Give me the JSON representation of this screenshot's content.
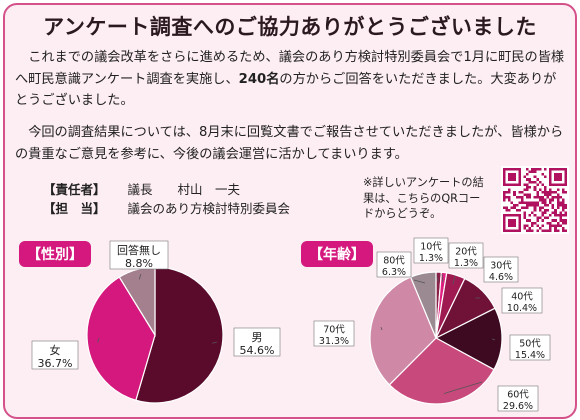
{
  "title": "アンケート調査へのご協力ありがとうございました",
  "paragraph1": {
    "before": "これまでの議会改革をさらに進めるため、議会のあり方検討特別委員会で1月に町民の皆様へ町民意識アンケート調査を実施し、",
    "highlight": "240名",
    "after": "の方からご回答をいただきました。大変ありがとうございました。"
  },
  "paragraph2": "今回の調査結果については、8月末に回覧文書でご報告させていただきましたが、皆様からの貴重なご意見を参考に、今後の議会運営に活かしてまいります。",
  "responsible": {
    "label1": "【責任者】",
    "value1": "議長　　村山　一夫",
    "label2": "【担　当】",
    "value2": "議会のあり方検討特別委員会"
  },
  "qr_note": "※詳しいアンケートの結果は、こちらのQRコードからどうぞ。",
  "colors": {
    "accent": "#d4187d",
    "border": "#d4518a",
    "background": "#fdeef4"
  },
  "chart_data": [
    {
      "type": "pie",
      "title": "【性別】",
      "slices": [
        {
          "label": "男",
          "value": 54.6,
          "text": "54.6%",
          "color": "#5a0b2c"
        },
        {
          "label": "女",
          "value": 36.7,
          "text": "36.7%",
          "color": "#d4187d"
        },
        {
          "label": "回答無し",
          "value": 8.8,
          "text": "8.8%",
          "color": "#a4808f"
        }
      ]
    },
    {
      "type": "pie",
      "title": "【年齢】",
      "slices": [
        {
          "label": "10代",
          "value": 1.3,
          "text": "1.3%",
          "color": "#8a2048"
        },
        {
          "label": "20代",
          "value": 1.3,
          "text": "1.3%",
          "color": "#e0207f"
        },
        {
          "label": "30代",
          "value": 4.6,
          "text": "4.6%",
          "color": "#a01a52"
        },
        {
          "label": "40代",
          "value": 10.4,
          "text": "10.4%",
          "color": "#701238"
        },
        {
          "label": "50代",
          "value": 15.4,
          "text": "15.4%",
          "color": "#3e0a22"
        },
        {
          "label": "60代",
          "value": 29.6,
          "text": "29.6%",
          "color": "#c8497c"
        },
        {
          "label": "70代",
          "value": 31.3,
          "text": "31.3%",
          "color": "#cf88a6"
        },
        {
          "label": "80代",
          "value": 6.3,
          "text": "6.3%",
          "color": "#9c8a92"
        }
      ]
    }
  ]
}
